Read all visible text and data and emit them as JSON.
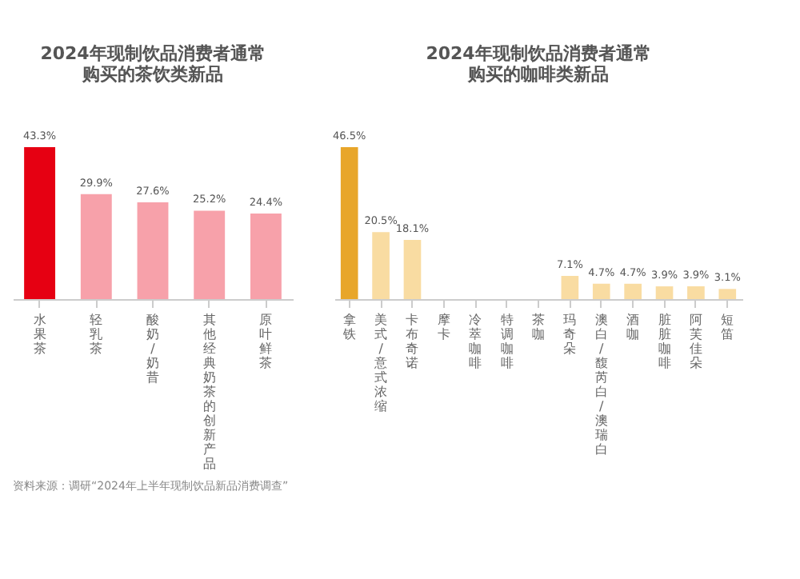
{
  "chart_data": [
    {
      "type": "bar",
      "title": "2024年现制饮品消费者通常购买的茶饮类新品",
      "categories": [
        "水果茶",
        "轻乳茶",
        "酸奶/奶昔",
        "其他经典奶茶的创新产品",
        "原叶鲜茶"
      ],
      "values": [
        43.3,
        29.9,
        27.6,
        25.2,
        24.4
      ],
      "value_labels": [
        "43.3%",
        "29.9%",
        "27.6%",
        "25.2%",
        "24.4%"
      ],
      "colors": [
        "#e60012",
        "#f7a1aa",
        "#f7a1aa",
        "#f7a1aa",
        "#f7a1aa"
      ],
      "annotations": [
        "资料来源：调研“2024年上半年现制饮品新品消费调查”"
      ]
    },
    {
      "type": "bar",
      "title": "2024年现制饮品消费者通常购买的咖啡类新品",
      "categories": [
        "拿铁",
        "美式/意式浓缩",
        "卡布奇诺",
        "摩卡",
        "冷萃咖啡",
        "特调咖啡",
        "茶咖",
        "玛奇朵",
        "澳白/馥芮白/澳瑞白",
        "酒咖",
        "脏脏咖啡",
        "阿芙佳朵",
        "短笛"
      ],
      "values": [
        46.5,
        20.5,
        18.1,
        null,
        null,
        null,
        null,
        7.1,
        4.7,
        4.7,
        3.9,
        3.9,
        3.1
      ],
      "value_labels": [
        "46.5%",
        "20.5%",
        "18.1%",
        null,
        null,
        null,
        null,
        "7.1%",
        "4.7%",
        "4.7%",
        "3.9%",
        "3.9%",
        "3.1%"
      ],
      "colors": [
        "#e8a62a",
        "#f9dca2",
        "#f9dca2",
        "#f9dca2",
        "#f9dca2",
        "#f9dca2",
        "#f9dca2",
        "#f9dca2",
        "#f9dca2",
        "#f9dca2",
        "#f9dca2",
        "#f9dca2",
        "#f9dca2"
      ]
    }
  ]
}
